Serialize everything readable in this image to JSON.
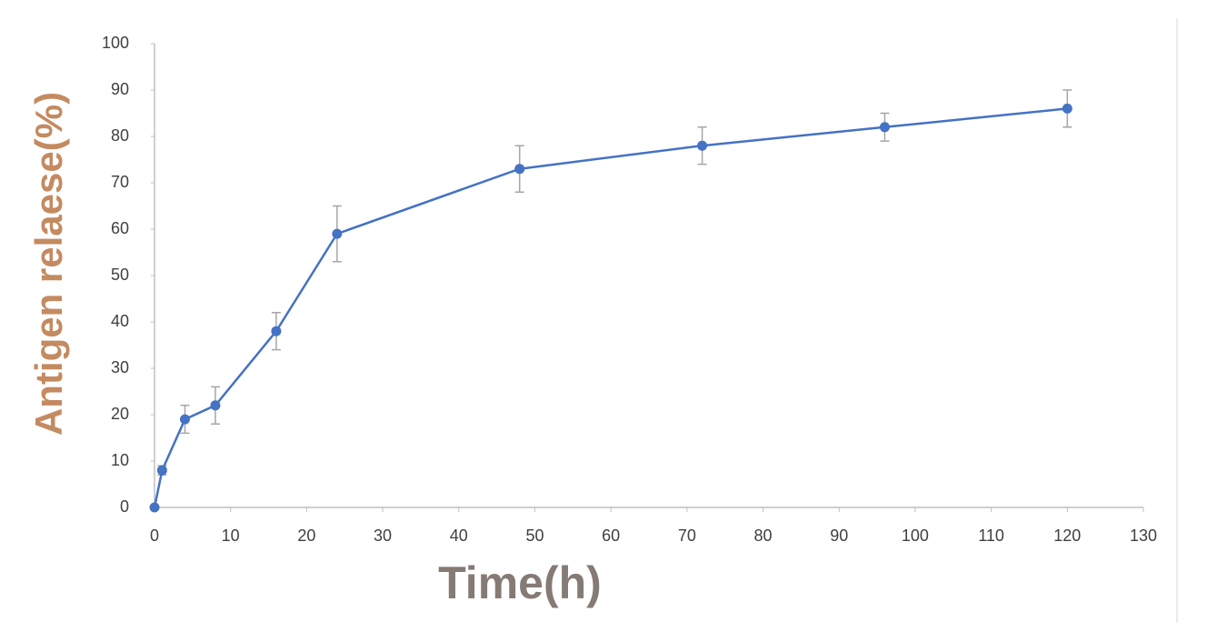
{
  "chart_data": {
    "type": "line",
    "x_label": "Time(h)",
    "y_label": "Antigen relaese(%)",
    "x": [
      0,
      1,
      4,
      8,
      16,
      24,
      48,
      72,
      96,
      120
    ],
    "series": [
      {
        "color": "#4472c4",
        "errors_color": "#a6a6a6",
        "values": [
          0,
          8,
          19,
          22,
          38,
          59,
          73,
          78,
          82,
          86
        ],
        "errors": [
          0,
          1,
          3,
          4,
          4,
          6,
          5,
          4,
          3,
          4
        ]
      }
    ],
    "xlim": [
      0,
      130
    ],
    "xticks": [
      0,
      10,
      20,
      30,
      40,
      50,
      60,
      70,
      80,
      90,
      100,
      110,
      120,
      130
    ],
    "ylim": [
      0,
      100
    ],
    "yticks": [
      0,
      10,
      20,
      30,
      40,
      50,
      60,
      70,
      80,
      90,
      100
    ],
    "grid": false
  }
}
